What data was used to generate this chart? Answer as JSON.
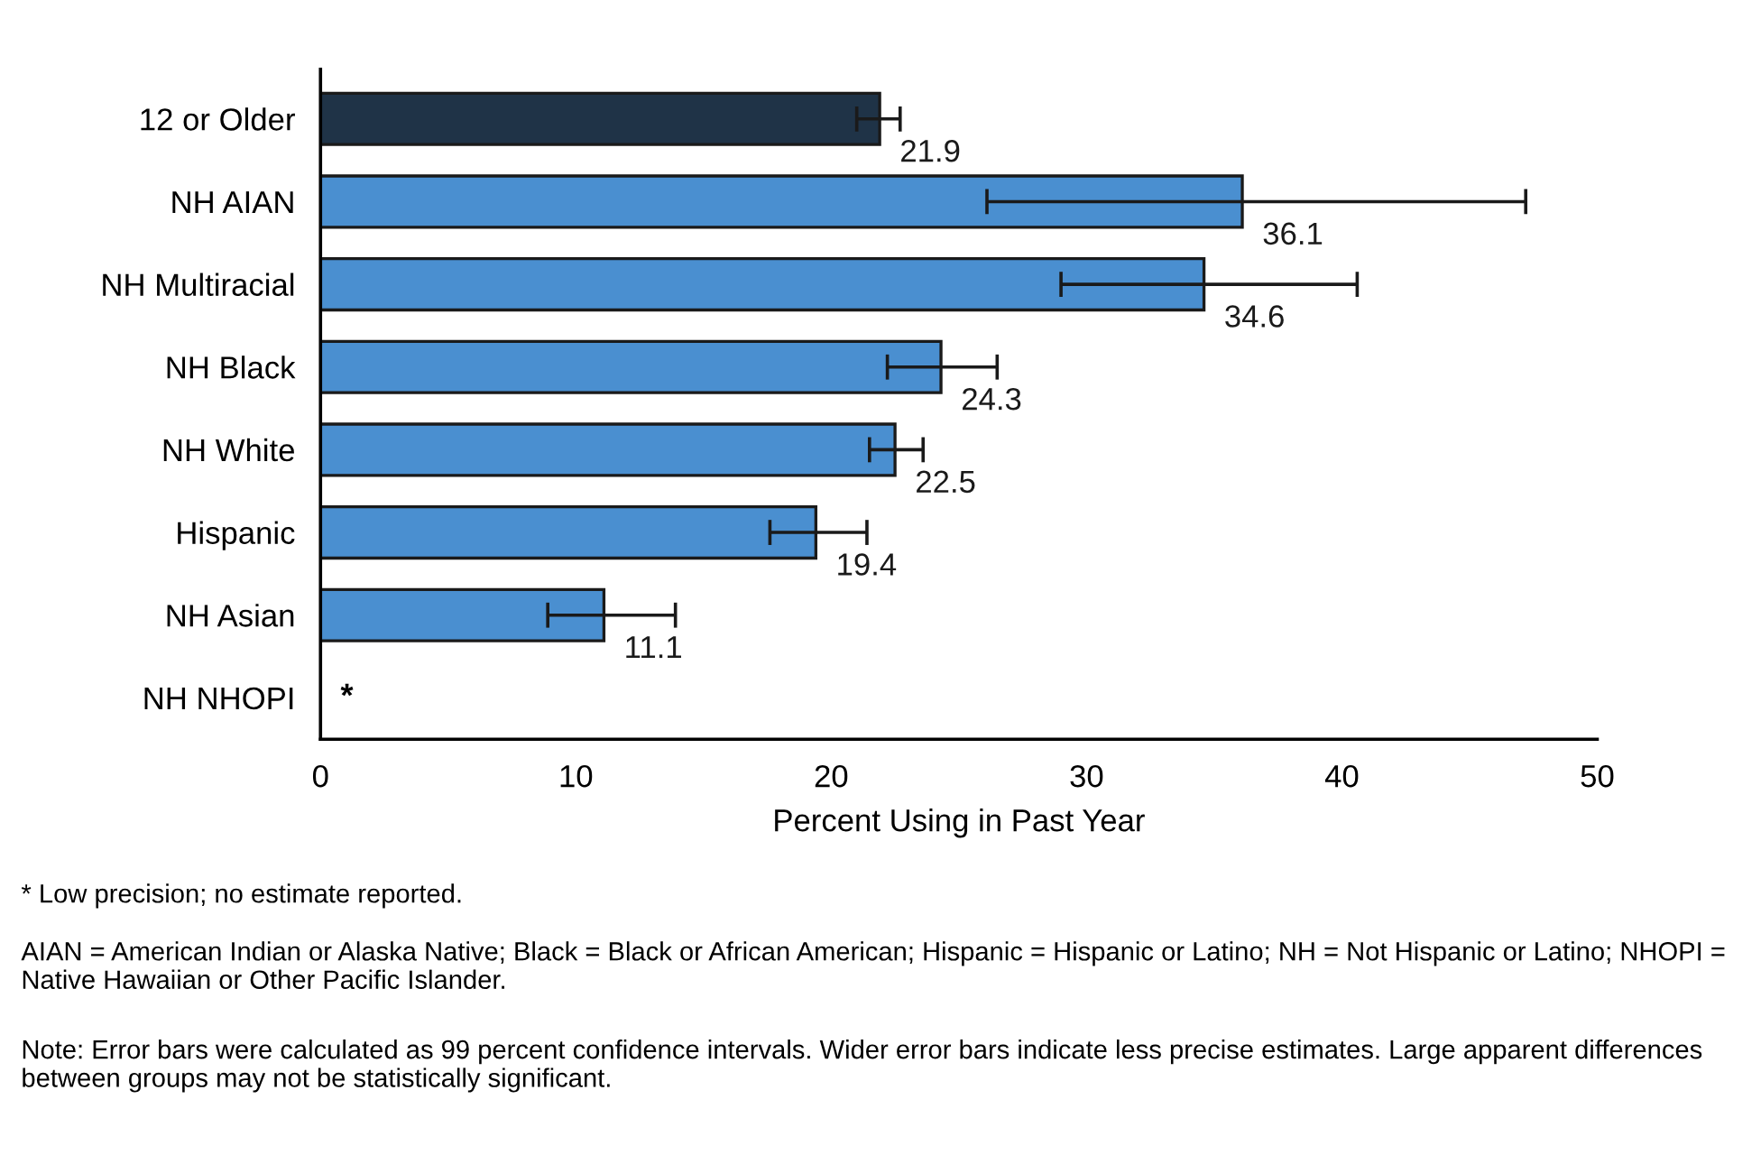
{
  "chart_data": {
    "type": "bar",
    "orientation": "horizontal",
    "xlabel": "Percent Using in Past Year",
    "categories": [
      "12 or Older",
      "NH AIAN",
      "NH Multiracial",
      "NH Black",
      "NH White",
      "Hispanic",
      "NH Asian",
      "NH NHOPI"
    ],
    "values": [
      21.9,
      36.1,
      34.6,
      24.3,
      22.5,
      19.4,
      11.1,
      null
    ],
    "colors": [
      "#1f3347",
      "#4a8fd0",
      "#4a8fd0",
      "#4a8fd0",
      "#4a8fd0",
      "#4a8fd0",
      "#4a8fd0",
      "#4a8fd0"
    ],
    "errors": [
      [
        21.0,
        22.7
      ],
      [
        26.1,
        47.2
      ],
      [
        29.0,
        40.6
      ],
      [
        22.2,
        26.5
      ],
      [
        21.5,
        23.6
      ],
      [
        17.6,
        21.4
      ],
      [
        8.9,
        13.9
      ],
      null
    ],
    "data_labels": true,
    "xlim": [
      0,
      50
    ],
    "xticks": [
      0,
      10,
      20,
      30,
      40,
      50
    ],
    "grid": false,
    "annotations": [
      "*",
      "* Low precision; no estimate reported.",
      "AIAN = American Indian or Alaska Native; Black = Black or African American; Hispanic = Hispanic or Latino; NH = Not Hispanic or Latino; NHOPI = Native Hawaiian or Other Pacific Islander.",
      "Note: Error bars were calculated as 99 percent confidence intervals. Wider error bars indicate less precise estimates. Large apparent differences between groups may not be statistically significant."
    ]
  }
}
